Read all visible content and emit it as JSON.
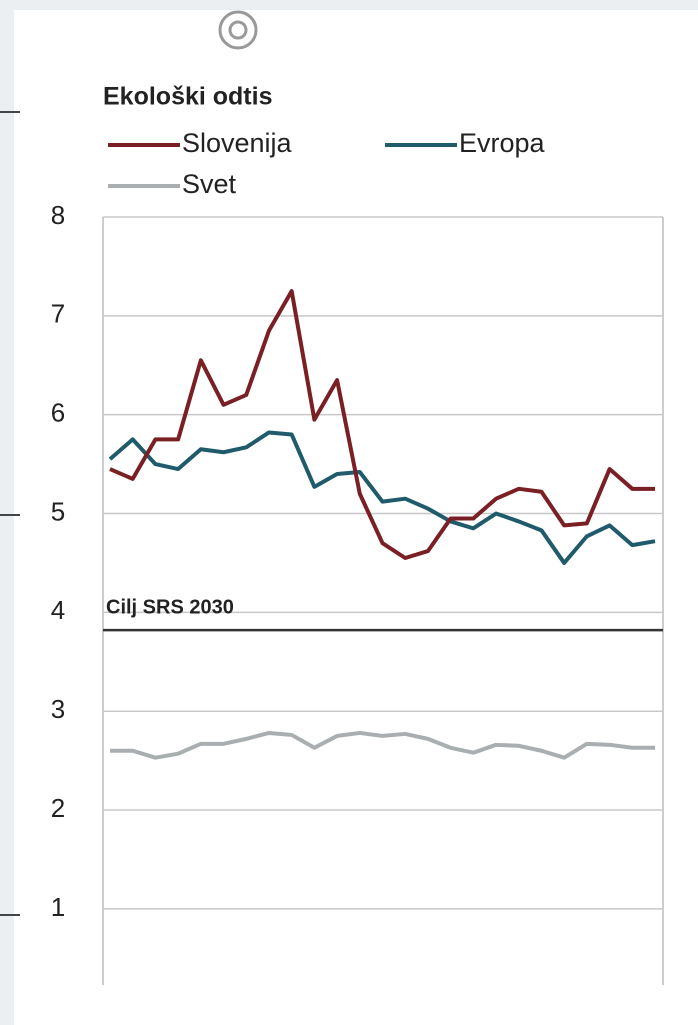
{
  "chart_data": {
    "type": "line",
    "title": "Ekološki odtis",
    "categories": [
      null,
      null,
      null,
      null,
      null,
      null,
      null,
      null,
      null,
      null,
      null,
      null,
      null,
      null,
      null,
      null,
      null,
      null,
      null,
      null,
      null,
      null,
      null,
      null,
      null
    ],
    "series": [
      {
        "name": "Slovenija",
        "color": "#7a1f24",
        "values": [
          5.45,
          5.35,
          5.75,
          5.75,
          6.55,
          6.1,
          6.2,
          6.85,
          7.25,
          5.95,
          6.35,
          5.2,
          4.7,
          4.55,
          4.62,
          4.95,
          4.95,
          5.15,
          5.25,
          5.22,
          4.88,
          4.9,
          5.45,
          5.25,
          5.25
        ]
      },
      {
        "name": "Evropa",
        "color": "#1f5b6b",
        "values": [
          5.55,
          5.75,
          5.5,
          5.45,
          5.65,
          5.62,
          5.67,
          5.82,
          5.8,
          5.27,
          5.4,
          5.42,
          5.12,
          5.15,
          5.05,
          4.92,
          4.85,
          5.0,
          4.92,
          4.83,
          4.5,
          4.77,
          4.88,
          4.68,
          4.72
        ]
      },
      {
        "name": "Svet",
        "color": "#a9aeb1",
        "values": [
          2.6,
          2.6,
          2.53,
          2.57,
          2.67,
          2.67,
          2.72,
          2.78,
          2.76,
          2.63,
          2.75,
          2.78,
          2.75,
          2.77,
          2.72,
          2.63,
          2.58,
          2.66,
          2.65,
          2.6,
          2.53,
          2.67,
          2.66,
          2.63,
          2.63
        ]
      }
    ],
    "target": {
      "label": "Cilj SRS 2030",
      "value": 3.82
    },
    "ylim": [
      0.23,
      8
    ],
    "yticks": [
      1,
      2,
      3,
      4,
      5,
      6,
      7,
      8
    ],
    "grid": true
  }
}
